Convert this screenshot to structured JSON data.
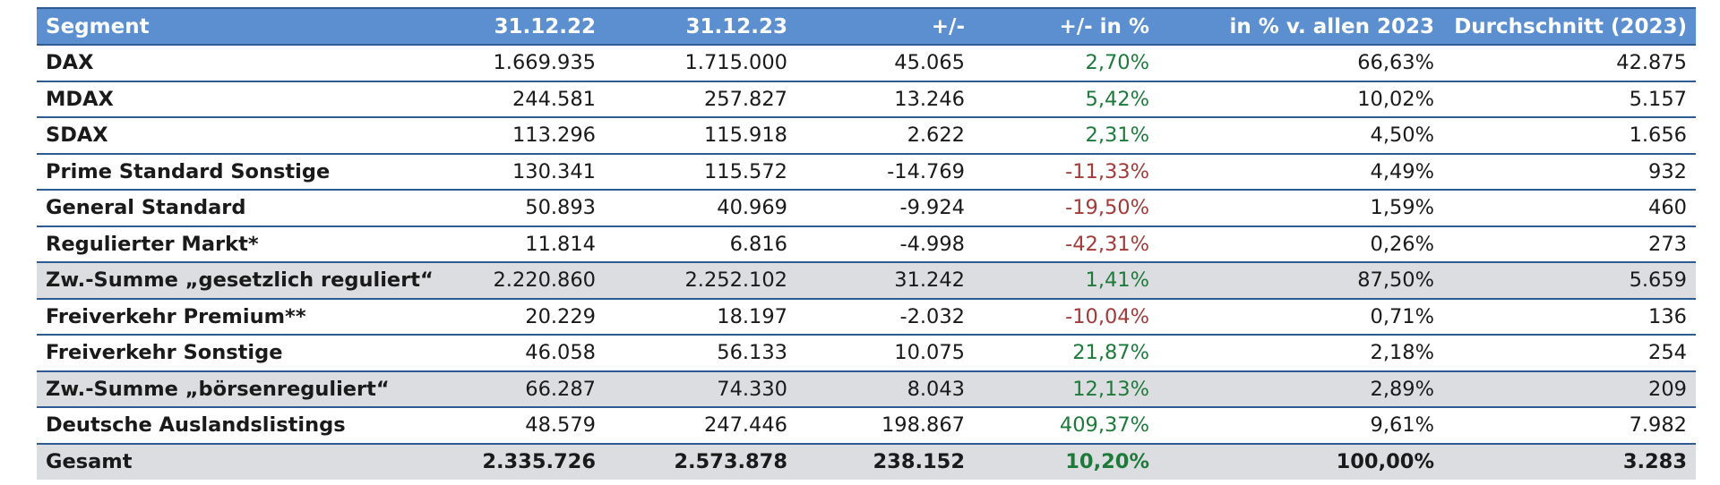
{
  "table": {
    "headers": [
      "Segment",
      "31.12.22",
      "31.12.23",
      "+/-",
      "+/- in %",
      "in % v. allen 2023",
      "Durchschnitt (2023)"
    ],
    "rows": [
      {
        "segment": "DAX",
        "v2022": "1.669.935",
        "v2023": "1.715.000",
        "diff": "45.065",
        "pct": "2,70%",
        "share": "66,63%",
        "avg": "42.875",
        "trend": "pos",
        "kind": "normal"
      },
      {
        "segment": "MDAX",
        "v2022": "244.581",
        "v2023": "257.827",
        "diff": "13.246",
        "pct": "5,42%",
        "share": "10,02%",
        "avg": "5.157",
        "trend": "pos",
        "kind": "normal"
      },
      {
        "segment": "SDAX",
        "v2022": "113.296",
        "v2023": "115.918",
        "diff": "2.622",
        "pct": "2,31%",
        "share": "4,50%",
        "avg": "1.656",
        "trend": "pos",
        "kind": "normal"
      },
      {
        "segment": "Prime Standard Sonstige",
        "v2022": "130.341",
        "v2023": "115.572",
        "diff": "-14.769",
        "pct": "-11,33%",
        "share": "4,49%",
        "avg": "932",
        "trend": "neg",
        "kind": "normal"
      },
      {
        "segment": "General Standard",
        "v2022": "50.893",
        "v2023": "40.969",
        "diff": "-9.924",
        "pct": "-19,50%",
        "share": "1,59%",
        "avg": "460",
        "trend": "neg",
        "kind": "normal"
      },
      {
        "segment": "Regulierter Markt*",
        "v2022": "11.814",
        "v2023": "6.816",
        "diff": "-4.998",
        "pct": "-42,31%",
        "share": "0,26%",
        "avg": "273",
        "trend": "neg",
        "kind": "normal"
      },
      {
        "segment": "Zw.-Summe „gesetzlich reguliert“",
        "v2022": "2.220.860",
        "v2023": "2.252.102",
        "diff": "31.242",
        "pct": "1,41%",
        "share": "87,50%",
        "avg": "5.659",
        "trend": "pos",
        "kind": "subtotal"
      },
      {
        "segment": "Freiverkehr Premium**",
        "v2022": "20.229",
        "v2023": "18.197",
        "diff": "-2.032",
        "pct": "-10,04%",
        "share": "0,71%",
        "avg": "136",
        "trend": "neg",
        "kind": "normal"
      },
      {
        "segment": "Freiverkehr Sonstige",
        "v2022": "46.058",
        "v2023": "56.133",
        "diff": "10.075",
        "pct": "21,87%",
        "share": "2,18%",
        "avg": "254",
        "trend": "pos",
        "kind": "normal"
      },
      {
        "segment": "Zw.-Summe „börsenreguliert“",
        "v2022": "66.287",
        "v2023": "74.330",
        "diff": "8.043",
        "pct": "12,13%",
        "share": "2,89%",
        "avg": "209",
        "trend": "pos",
        "kind": "subtotal"
      },
      {
        "segment": "Deutsche Auslandslistings",
        "v2022": "48.579",
        "v2023": "247.446",
        "diff": "198.867",
        "pct": "409,37%",
        "share": "9,61%",
        "avg": "7.982",
        "trend": "pos",
        "kind": "normal"
      },
      {
        "segment": "Gesamt",
        "v2022": "2.335.726",
        "v2023": "2.573.878",
        "diff": "238.152",
        "pct": "10,20%",
        "share": "100,00%",
        "avg": "3.283",
        "trend": "pos",
        "kind": "total"
      }
    ]
  },
  "colors": {
    "header_bg": "#5b8fd0",
    "rule": "#2f5b93",
    "subtotal_bg": "#dcdde0",
    "positive": "#1e7a3a",
    "negative": "#a33a3a"
  }
}
